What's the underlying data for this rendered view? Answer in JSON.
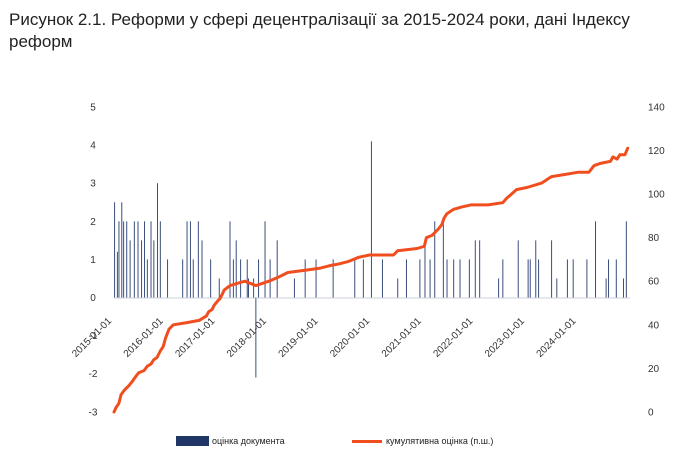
{
  "title": "Рисунок 2.1. Реформи у сфері децентралізації за 2015-2024 роки, дані Індексу реформ",
  "chart_data": {
    "type": "bar",
    "x_range": [
      "2015-01-01",
      "2024-12-31"
    ],
    "x_ticks": [
      "2015-01-01",
      "2016-01-01",
      "2017-01-01",
      "2018-01-01",
      "2019-01-01",
      "2020-01-01",
      "2021-01-01",
      "2022-01-01",
      "2023-01-01",
      "2024-01-01"
    ],
    "y_left": {
      "min": -3,
      "max": 5,
      "ticks": [
        "-3",
        "-2",
        "-1",
        "0",
        "1",
        "2",
        "3",
        "4",
        "5"
      ]
    },
    "y_right": {
      "min": 0,
      "max": 140,
      "ticks": [
        "0",
        "20",
        "40",
        "60",
        "80",
        "100",
        "120",
        "140"
      ]
    },
    "colors": {
      "bars": "#3b4f7d",
      "line": "#f04e1f"
    },
    "legend_position": "bottom",
    "series": [
      {
        "name": "оцінка документа",
        "type": "bar",
        "axis": "left",
        "points": [
          [
            "2015-01-05",
            2.5
          ],
          [
            "2015-01-25",
            1.2
          ],
          [
            "2015-02-05",
            2.0
          ],
          [
            "2015-02-25",
            2.5
          ],
          [
            "2015-03-10",
            2.0
          ],
          [
            "2015-04-01",
            2.0
          ],
          [
            "2015-04-25",
            1.5
          ],
          [
            "2015-05-25",
            2.0
          ],
          [
            "2015-06-20",
            2.0
          ],
          [
            "2015-07-15",
            1.5
          ],
          [
            "2015-08-05",
            2.0
          ],
          [
            "2015-08-25",
            1.0
          ],
          [
            "2015-09-20",
            2.0
          ],
          [
            "2015-10-10",
            1.5
          ],
          [
            "2015-11-05",
            3.0
          ],
          [
            "2015-11-25",
            2.0
          ],
          [
            "2016-01-15",
            1.0
          ],
          [
            "2016-05-01",
            1.0
          ],
          [
            "2016-06-01",
            2.0
          ],
          [
            "2016-06-25",
            2.0
          ],
          [
            "2016-07-15",
            1.0
          ],
          [
            "2016-08-20",
            2.0
          ],
          [
            "2016-09-15",
            1.5
          ],
          [
            "2016-11-15",
            1.0
          ],
          [
            "2017-01-15",
            0.5
          ],
          [
            "2017-04-01",
            2.0
          ],
          [
            "2017-04-25",
            1.0
          ],
          [
            "2017-05-15",
            1.5
          ],
          [
            "2017-06-15",
            1.0
          ],
          [
            "2017-08-01",
            1.0
          ],
          [
            "2017-08-10",
            0.5
          ],
          [
            "2017-09-15",
            0.5
          ],
          [
            "2017-10-01",
            -2.1
          ],
          [
            "2017-10-20",
            1.0
          ],
          [
            "2017-12-05",
            2.0
          ],
          [
            "2018-01-10",
            1.0
          ],
          [
            "2018-03-01",
            1.5
          ],
          [
            "2018-07-01",
            0.5
          ],
          [
            "2018-09-15",
            1.0
          ],
          [
            "2018-12-01",
            1.0
          ],
          [
            "2019-04-01",
            1.0
          ],
          [
            "2019-09-01",
            1.0
          ],
          [
            "2019-11-01",
            1.0
          ],
          [
            "2019-12-28",
            4.1
          ],
          [
            "2020-03-15",
            1.0
          ],
          [
            "2020-07-01",
            0.5
          ],
          [
            "2020-09-01",
            1.0
          ],
          [
            "2020-12-05",
            1.0
          ],
          [
            "2021-01-10",
            1.5
          ],
          [
            "2021-02-15",
            1.0
          ],
          [
            "2021-03-20",
            2.0
          ],
          [
            "2021-05-20",
            2.0
          ],
          [
            "2021-06-15",
            1.0
          ],
          [
            "2021-08-01",
            1.0
          ],
          [
            "2021-09-15",
            1.0
          ],
          [
            "2021-11-20",
            1.0
          ],
          [
            "2022-01-01",
            1.5
          ],
          [
            "2022-02-01",
            1.5
          ],
          [
            "2022-06-15",
            0.5
          ],
          [
            "2022-07-15",
            1.0
          ],
          [
            "2022-11-01",
            1.5
          ],
          [
            "2023-01-10",
            1.0
          ],
          [
            "2023-01-25",
            1.0
          ],
          [
            "2023-03-05",
            1.5
          ],
          [
            "2023-03-25",
            1.0
          ],
          [
            "2023-06-25",
            1.5
          ],
          [
            "2023-08-01",
            0.5
          ],
          [
            "2023-10-15",
            1.0
          ],
          [
            "2023-11-25",
            1.0
          ],
          [
            "2024-03-01",
            1.0
          ],
          [
            "2024-05-01",
            2.0
          ],
          [
            "2024-07-15",
            0.5
          ],
          [
            "2024-08-01",
            1.0
          ],
          [
            "2024-09-25",
            1.0
          ],
          [
            "2024-11-15",
            0.5
          ],
          [
            "2024-12-05",
            2.0
          ]
        ]
      },
      {
        "name": "кумулятивна оцінка (п.ш.)",
        "type": "line",
        "axis": "right",
        "points": [
          [
            "2015-01-01",
            0
          ],
          [
            "2015-01-15",
            2
          ],
          [
            "2015-02-05",
            4
          ],
          [
            "2015-02-20",
            8
          ],
          [
            "2015-03-15",
            10
          ],
          [
            "2015-04-15",
            12
          ],
          [
            "2015-05-10",
            14
          ],
          [
            "2015-06-01",
            16
          ],
          [
            "2015-06-25",
            18
          ],
          [
            "2015-08-01",
            19
          ],
          [
            "2015-08-25",
            21
          ],
          [
            "2015-09-20",
            22
          ],
          [
            "2015-10-10",
            24
          ],
          [
            "2015-11-01",
            25
          ],
          [
            "2015-11-25",
            28
          ],
          [
            "2015-12-15",
            30
          ],
          [
            "2016-01-01",
            34
          ],
          [
            "2016-01-25",
            38
          ],
          [
            "2016-02-25",
            40
          ],
          [
            "2016-06-01",
            41
          ],
          [
            "2016-08-25",
            42
          ],
          [
            "2016-10-15",
            44
          ],
          [
            "2016-11-01",
            46
          ],
          [
            "2016-11-25",
            47
          ],
          [
            "2016-12-10",
            49
          ],
          [
            "2017-01-05",
            51
          ],
          [
            "2017-01-20",
            52
          ],
          [
            "2017-02-05",
            54
          ],
          [
            "2017-02-20",
            56
          ],
          [
            "2017-04-01",
            58
          ],
          [
            "2017-07-15",
            60
          ],
          [
            "2017-10-01",
            58
          ],
          [
            "2018-01-01",
            60
          ],
          [
            "2018-03-15",
            62
          ],
          [
            "2018-05-15",
            64
          ],
          [
            "2018-09-15",
            65
          ],
          [
            "2019-01-01",
            66
          ],
          [
            "2019-03-01",
            67
          ],
          [
            "2019-05-15",
            68
          ],
          [
            "2019-07-15",
            69
          ],
          [
            "2019-10-01",
            71
          ],
          [
            "2019-12-15",
            72
          ],
          [
            "2020-06-01",
            72
          ],
          [
            "2020-07-01",
            74
          ],
          [
            "2020-11-15",
            75
          ],
          [
            "2021-01-05",
            76
          ],
          [
            "2021-01-20",
            80
          ],
          [
            "2021-03-01",
            81
          ],
          [
            "2021-04-15",
            84
          ],
          [
            "2021-05-10",
            86
          ],
          [
            "2021-05-25",
            89
          ],
          [
            "2021-06-15",
            91
          ],
          [
            "2021-08-01",
            93
          ],
          [
            "2021-09-25",
            94
          ],
          [
            "2021-12-01",
            95
          ],
          [
            "2022-04-01",
            95
          ],
          [
            "2022-07-15",
            96
          ],
          [
            "2022-08-10",
            98
          ],
          [
            "2022-09-15",
            100
          ],
          [
            "2022-10-20",
            102
          ],
          [
            "2023-01-01",
            103
          ],
          [
            "2023-04-15",
            105
          ],
          [
            "2023-06-01",
            107
          ],
          [
            "2023-06-25",
            108
          ],
          [
            "2023-10-01",
            109
          ],
          [
            "2024-01-01",
            110
          ],
          [
            "2024-03-15",
            110
          ],
          [
            "2024-04-20",
            113
          ],
          [
            "2024-06-01",
            114
          ],
          [
            "2024-08-15",
            115
          ],
          [
            "2024-09-01",
            117
          ],
          [
            "2024-10-01",
            116
          ],
          [
            "2024-10-20",
            118
          ],
          [
            "2024-11-25",
            118
          ],
          [
            "2024-12-15",
            121
          ]
        ]
      }
    ]
  }
}
